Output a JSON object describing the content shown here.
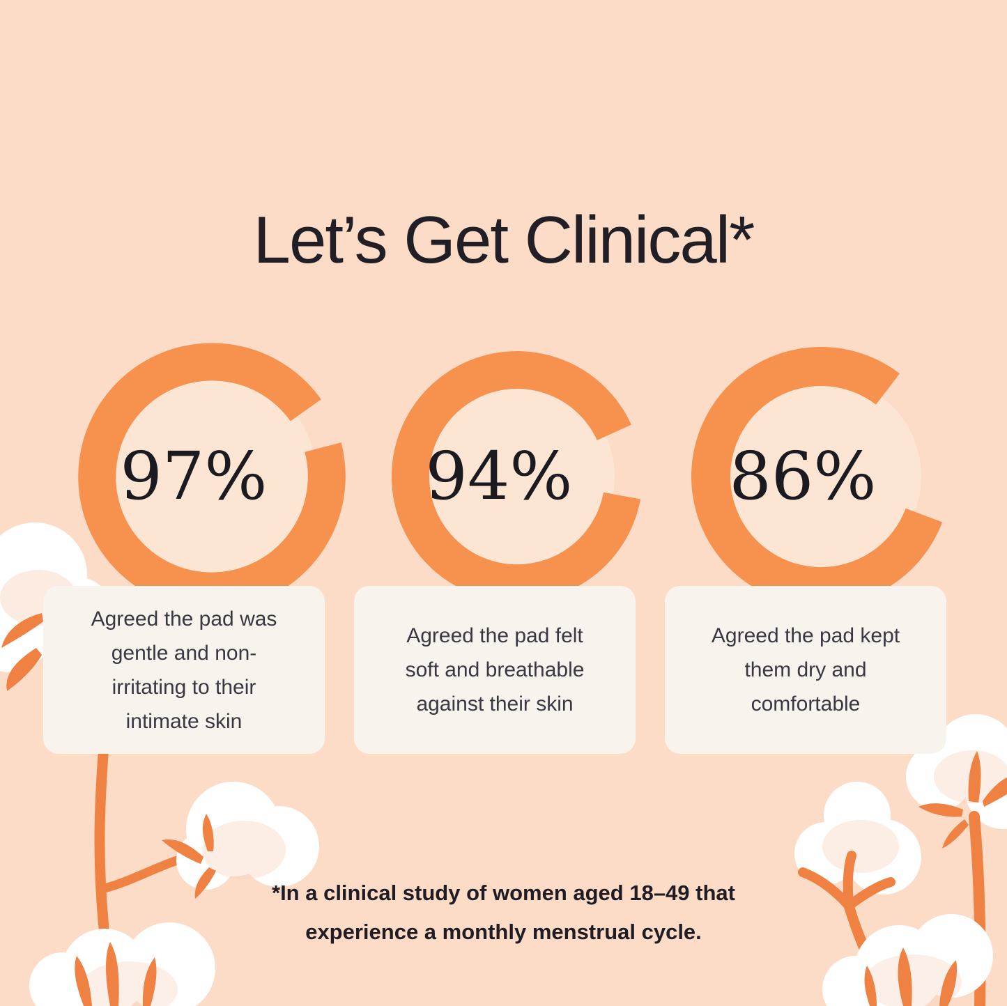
{
  "title": "Let’s Get Clinical*",
  "chart_data": [
    {
      "type": "pie",
      "style": "donut-ring",
      "value": 97,
      "total": 100,
      "unit": "%",
      "percent_label": "97%",
      "label": "Agreed the pad was\ngentle and non-\nirritating to their\nintimate skin"
    },
    {
      "type": "pie",
      "style": "donut-ring",
      "value": 94,
      "total": 100,
      "unit": "%",
      "percent_label": "94%",
      "label": "Agreed the pad felt\nsoft and breathable\nagainst their skin"
    },
    {
      "type": "pie",
      "style": "donut-ring",
      "value": 86,
      "total": 100,
      "unit": "%",
      "percent_label": "86%",
      "label": "Agreed the pad kept\nthem dry and\ncomfortable"
    }
  ],
  "footnote": {
    "line1": "*In a clinical study of women aged 18–49 that",
    "line2": "experience a monthly menstrual cycle."
  },
  "colors": {
    "background": "#fcdcc7",
    "donut_ring": "#f6914e",
    "donut_inner": "#fde5d4",
    "card_background": "#f8f4ed",
    "title_text": "#211e26",
    "card_text": "#3a3740",
    "footnote_text": "#1f1c23",
    "stem_orange": "#ef8243",
    "cotton_white": "#ffffff"
  },
  "decor": {
    "motif": "cotton-flower-illustration"
  }
}
